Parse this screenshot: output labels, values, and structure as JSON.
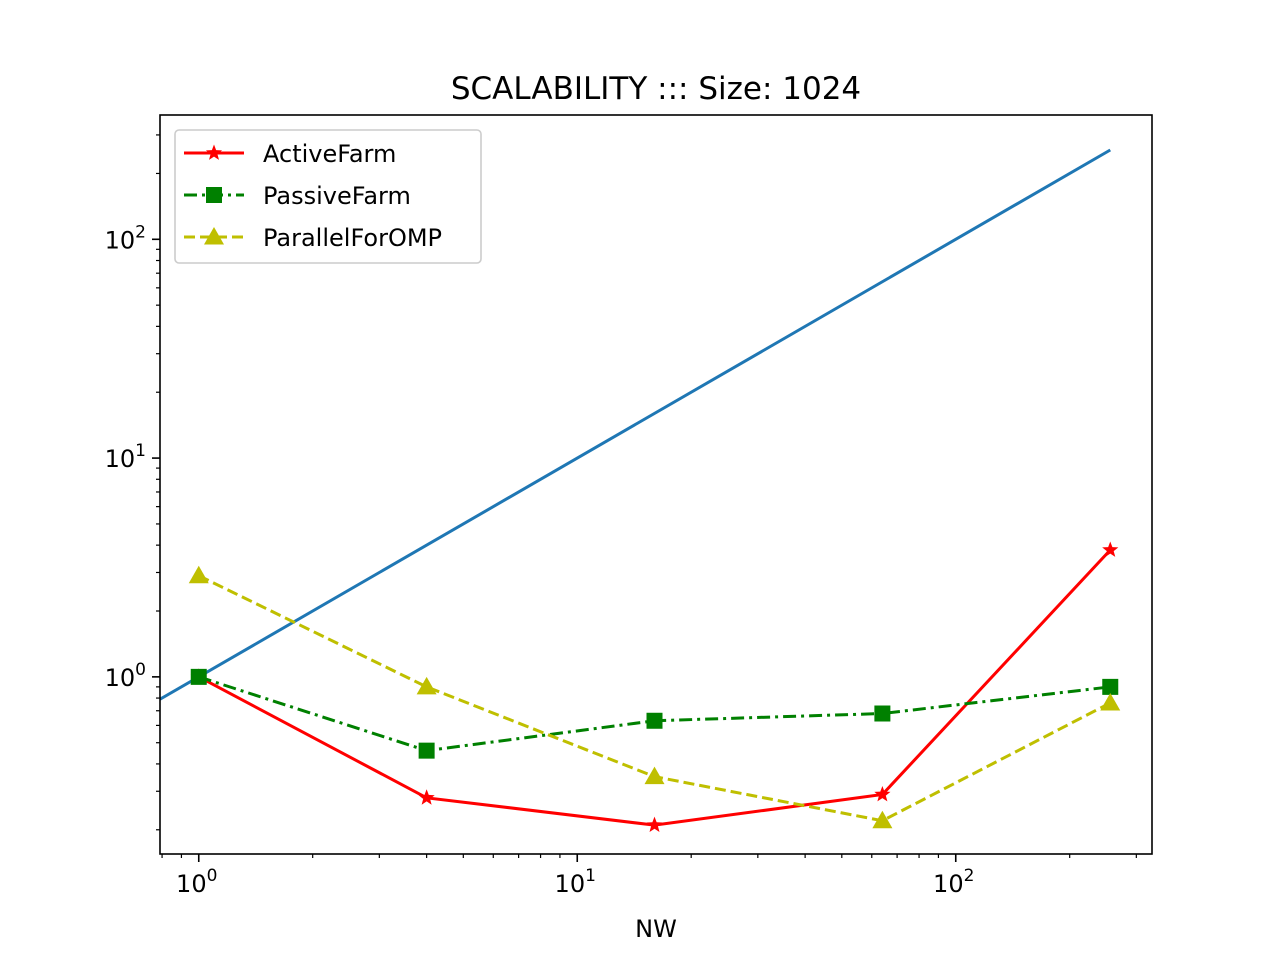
{
  "chart_data": {
    "type": "line",
    "title": "SCALABILITY ::: Size: 1024",
    "xlabel": "NW",
    "ylabel": "",
    "xscale": "log",
    "yscale": "log",
    "xlim": [
      0.79,
      330
    ],
    "ylim": [
      0.155,
      370
    ],
    "grid": false,
    "legend_position": "top-left",
    "x_ticks": [
      {
        "base": "10",
        "exp": "0",
        "value": 1
      },
      {
        "base": "10",
        "exp": "1",
        "value": 10
      },
      {
        "base": "10",
        "exp": "2",
        "value": 100
      }
    ],
    "y_ticks": [
      {
        "base": "10",
        "exp": "0",
        "value": 1
      },
      {
        "base": "10",
        "exp": "1",
        "value": 10
      },
      {
        "base": "10",
        "exp": "2",
        "value": 100
      }
    ],
    "ideal_line": {
      "color": "#1f77b4",
      "x": [
        0.79,
        256
      ],
      "y": [
        0.79,
        256
      ]
    },
    "series": [
      {
        "name": "ActiveFarm",
        "color": "#ff0000",
        "marker": "star",
        "linestyle": "solid",
        "x": [
          1,
          4,
          16,
          64,
          256
        ],
        "y": [
          1.0,
          0.28,
          0.21,
          0.29,
          3.8
        ]
      },
      {
        "name": "PassiveFarm",
        "color": "#008000",
        "marker": "square",
        "linestyle": "dashdot",
        "x": [
          1,
          4,
          16,
          64,
          256
        ],
        "y": [
          1.0,
          0.46,
          0.63,
          0.68,
          0.9
        ]
      },
      {
        "name": "ParallelForOMP",
        "color": "#bfbf00",
        "marker": "triangle",
        "linestyle": "dashed",
        "x": [
          1,
          4,
          16,
          64,
          256
        ],
        "y": [
          2.9,
          0.9,
          0.35,
          0.22,
          0.76
        ]
      }
    ]
  }
}
